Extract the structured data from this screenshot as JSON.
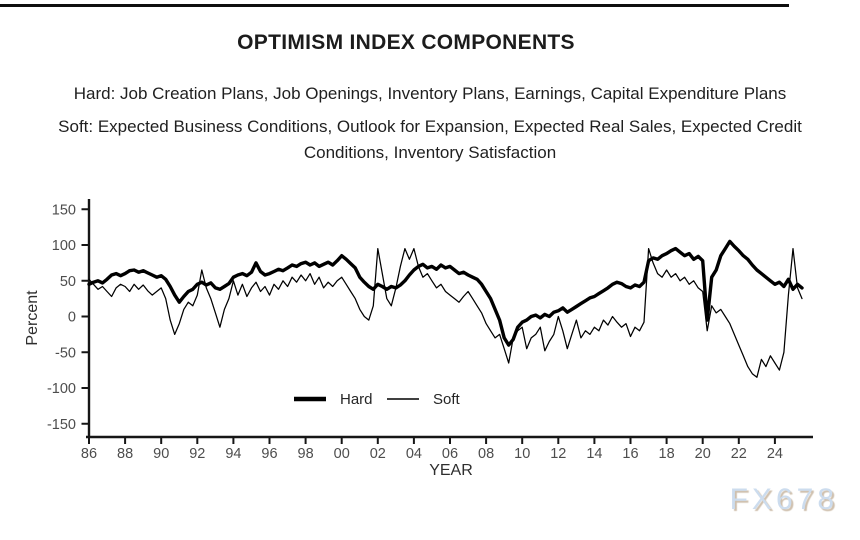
{
  "title": "OPTIMISM INDEX COMPONENTS",
  "subtitle_hard": "Hard: Job Creation Plans, Job Openings, Inventory Plans, Earnings, Capital Expenditure Plans",
  "subtitle_soft": "Soft: Expected Business Conditions, Outlook for Expansion, Expected Real Sales, Expected Credit Conditions, Inventory Satisfaction",
  "watermark": "FX678",
  "chart_data": {
    "type": "line",
    "title": "",
    "xlabel": "YEAR",
    "ylabel": "Percent",
    "ylim": [
      -150,
      150
    ],
    "xlim": [
      1986,
      2025.6
    ],
    "grid": false,
    "legend_position": "inside-bottom-center",
    "colors": {
      "line": "#000000",
      "tick_label": "#4d4d4d",
      "axis": "#161616"
    },
    "y_ticks": [
      150,
      100,
      50,
      0,
      -50,
      -100,
      -150
    ],
    "y_tick_labels": [
      "150",
      "100",
      "50",
      "0",
      "-50",
      "-100",
      "-150"
    ],
    "x_tick_years": [
      1986,
      1988,
      1990,
      1992,
      1994,
      1996,
      1998,
      2000,
      2002,
      2004,
      2006,
      2008,
      2010,
      2012,
      2014,
      2016,
      2018,
      2020,
      2022,
      2024
    ],
    "x_tick_labels": [
      "86",
      "88",
      "90",
      "92",
      "94",
      "96",
      "98",
      "00",
      "02",
      "04",
      "06",
      "08",
      "10",
      "12",
      "14",
      "16",
      "18",
      "20",
      "22",
      "24"
    ],
    "x_start": 1986.0,
    "x_step": 0.25,
    "series": [
      {
        "name": "Hard",
        "line_weight": "thick",
        "values": [
          45,
          48,
          50,
          47,
          52,
          58,
          60,
          57,
          60,
          64,
          65,
          62,
          64,
          61,
          58,
          55,
          57,
          52,
          42,
          30,
          20,
          28,
          35,
          38,
          45,
          48,
          44,
          47,
          40,
          38,
          42,
          46,
          55,
          58,
          60,
          57,
          62,
          75,
          63,
          58,
          60,
          63,
          66,
          64,
          68,
          72,
          70,
          74,
          76,
          72,
          75,
          70,
          73,
          76,
          72,
          78,
          85,
          80,
          74,
          68,
          55,
          48,
          42,
          38,
          45,
          42,
          38,
          42,
          40,
          44,
          50,
          58,
          65,
          70,
          73,
          68,
          70,
          66,
          72,
          68,
          70,
          65,
          60,
          62,
          58,
          55,
          52,
          45,
          35,
          25,
          10,
          -5,
          -30,
          -40,
          -32,
          -15,
          -8,
          -5,
          0,
          2,
          -2,
          3,
          0,
          6,
          8,
          12,
          6,
          10,
          14,
          18,
          22,
          26,
          28,
          32,
          36,
          40,
          45,
          48,
          46,
          42,
          40,
          44,
          42,
          48,
          78,
          82,
          80,
          85,
          88,
          92,
          95,
          90,
          85,
          88,
          80,
          84,
          78,
          -5,
          55,
          65,
          85,
          95,
          105,
          98,
          92,
          85,
          80,
          72,
          65,
          60,
          55,
          50,
          45,
          48,
          42,
          52,
          38,
          45,
          40
        ]
      },
      {
        "name": "Soft",
        "line_weight": "thin",
        "values": [
          52,
          45,
          38,
          42,
          35,
          28,
          40,
          45,
          42,
          35,
          45,
          38,
          44,
          36,
          30,
          35,
          40,
          25,
          -5,
          -25,
          -10,
          10,
          20,
          15,
          30,
          65,
          40,
          25,
          5,
          -15,
          10,
          25,
          50,
          30,
          45,
          28,
          40,
          48,
          35,
          42,
          30,
          45,
          38,
          50,
          42,
          55,
          48,
          58,
          50,
          60,
          45,
          55,
          40,
          48,
          42,
          50,
          55,
          45,
          35,
          25,
          10,
          0,
          -5,
          15,
          95,
          60,
          25,
          15,
          40,
          70,
          95,
          80,
          95,
          70,
          55,
          60,
          50,
          40,
          45,
          35,
          30,
          25,
          20,
          28,
          35,
          25,
          15,
          5,
          -10,
          -20,
          -30,
          -25,
          -45,
          -65,
          -30,
          -20,
          -15,
          -45,
          -30,
          -25,
          -15,
          -48,
          -35,
          -25,
          0,
          -20,
          -45,
          -25,
          -5,
          -30,
          -20,
          -25,
          -15,
          -20,
          -5,
          -12,
          0,
          -8,
          -15,
          -10,
          -28,
          -15,
          -20,
          -8,
          95,
          75,
          60,
          55,
          65,
          55,
          60,
          50,
          55,
          45,
          50,
          40,
          35,
          -20,
          15,
          5,
          10,
          0,
          -10,
          -25,
          -40,
          -55,
          -70,
          -80,
          -85,
          -60,
          -70,
          -55,
          -65,
          -75,
          -50,
          30,
          95,
          40,
          25
        ]
      }
    ]
  }
}
